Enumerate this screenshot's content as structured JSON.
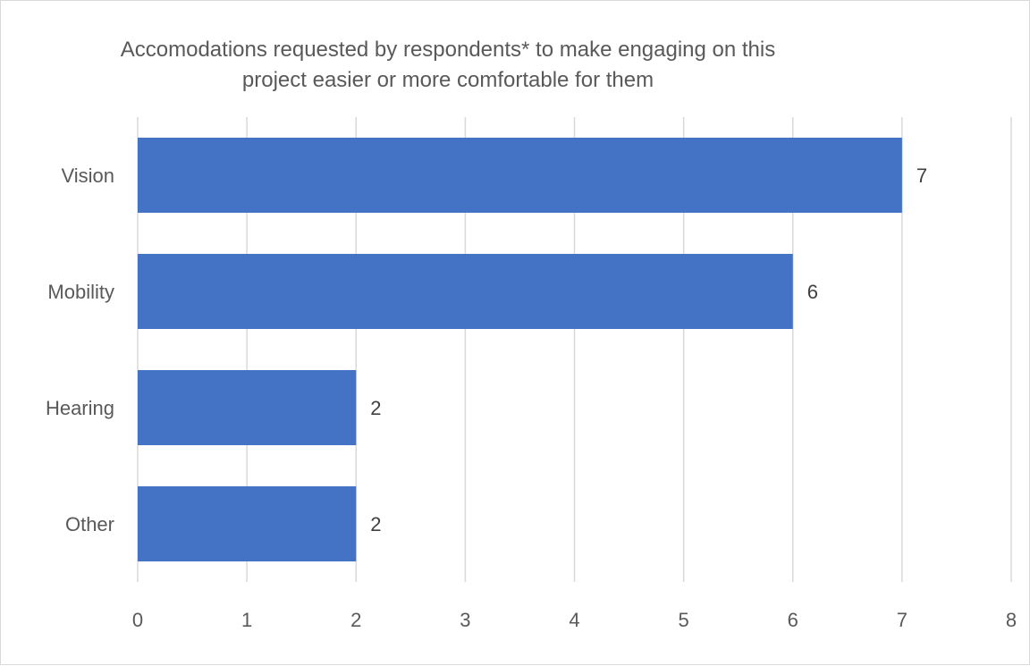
{
  "chart_data": {
    "type": "bar",
    "orientation": "horizontal",
    "title": "Accomodations requested by respondents* to make engaging on this\nproject easier or more comfortable for them",
    "categories": [
      "Vision",
      "Mobility",
      "Hearing",
      "Other"
    ],
    "values": [
      7,
      6,
      2,
      2
    ],
    "data_labels": [
      "7",
      "6",
      "2",
      "2"
    ],
    "xlim": [
      0,
      8
    ],
    "x_ticks": [
      "0",
      "1",
      "2",
      "3",
      "4",
      "5",
      "6",
      "7",
      "8"
    ],
    "xlabel": "",
    "ylabel": "",
    "grid": "vertical",
    "legend": "none",
    "colors": {
      "bar": "#4472c4",
      "grid": "#d9d9d9",
      "text": "#595959",
      "data_label": "#404040"
    }
  }
}
